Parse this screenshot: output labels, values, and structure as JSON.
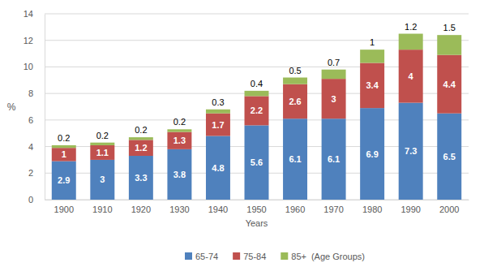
{
  "chart_data": {
    "type": "bar",
    "stacked": true,
    "data_labels": true,
    "grid": true,
    "legend": "bottom",
    "x_label": "Years",
    "y_label": "%",
    "legend_title": "(Age Groups)",
    "categories": [
      "1900",
      "1910",
      "1920",
      "1930",
      "1940",
      "1950",
      "1960",
      "1970",
      "1980",
      "1990",
      "2000"
    ],
    "series": [
      {
        "name": "65-74",
        "color": "#4f81bd",
        "values": [
          2.9,
          3,
          3.3,
          3.8,
          4.8,
          5.6,
          6.1,
          6.1,
          6.9,
          7.3,
          6.5
        ]
      },
      {
        "name": "75-84",
        "color": "#c0504d",
        "values": [
          1,
          1.1,
          1.2,
          1.3,
          1.7,
          2.2,
          2.6,
          3,
          3.4,
          4,
          4.4
        ]
      },
      {
        "name": "85+",
        "color": "#9bbb59",
        "values": [
          0.2,
          0.2,
          0.2,
          0.2,
          0.3,
          0.4,
          0.5,
          0.7,
          1,
          1.2,
          1.5
        ]
      }
    ],
    "ylim": [
      0,
      14
    ],
    "yticks": [
      0,
      2,
      4,
      6,
      8,
      10,
      12,
      14
    ]
  }
}
